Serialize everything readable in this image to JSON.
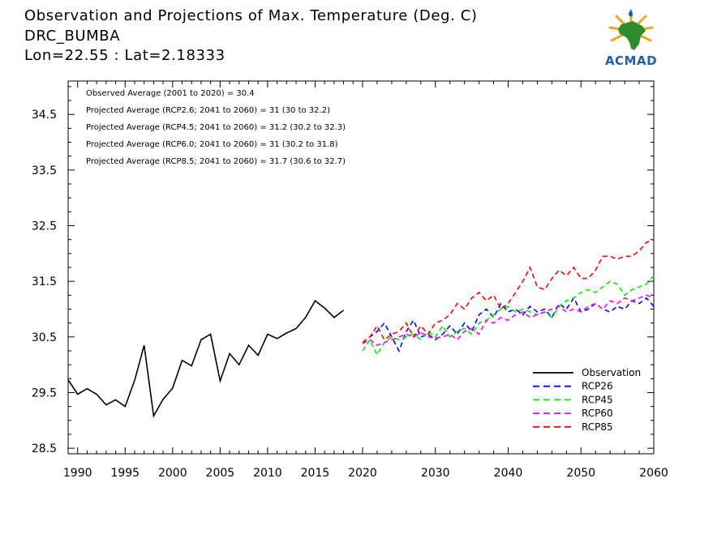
{
  "header": {
    "title": "Observation and Projections of Max. Temperature (Deg. C)",
    "station": "DRC_BUMBA",
    "coords": "Lon=22.55 : Lat=2.18333"
  },
  "logo": {
    "text": "ACMAD"
  },
  "annotations": [
    "Observed Average (2001 to 2020) = 30.4",
    "Projected Average (RCP2.6; 2041 to 2060) = 31 (30 to 32.2)",
    "Projected Average (RCP4.5; 2041 to 2060) = 31.2 (30.2 to 32.3)",
    "Projected Average (RCP6.0; 2041 to 2060) = 31 (30.2 to 31.8)",
    "Projected Average (RCP8.5; 2041 to 2060) = 31.7 (30.6 to 32.7)"
  ],
  "chart_data": {
    "type": "line",
    "xlim": [
      1989,
      2060
    ],
    "ylim": [
      28.4,
      35.1
    ],
    "yticks": [
      "28.5",
      "29.5",
      "30.5",
      "31.5",
      "32.5",
      "33.5",
      "34.5"
    ],
    "xticks_left": [
      "1990",
      "1995",
      "2000",
      "2005",
      "2010",
      "2015",
      "2020"
    ],
    "xticks_right": [
      "2030",
      "2040",
      "2050",
      "2060"
    ],
    "legend_position": "bottom-right",
    "colors": {
      "Observation": "#000000",
      "RCP26": "#0000ff",
      "RCP45": "#00ee00",
      "RCP60": "#ff00ff",
      "RCP85": "#ff0000"
    },
    "series": [
      {
        "name": "Observation",
        "style": "solid",
        "x": [
          1989,
          1990,
          1991,
          1992,
          1993,
          1994,
          1995,
          1996,
          1997,
          1998,
          1999,
          2000,
          2001,
          2002,
          2003,
          2004,
          2005,
          2006,
          2007,
          2008,
          2009,
          2010,
          2011,
          2012,
          2013,
          2014,
          2015,
          2016,
          2017,
          2018,
          2019
        ],
        "values": [
          29.73,
          29.47,
          29.57,
          29.47,
          29.28,
          29.37,
          29.25,
          29.72,
          30.35,
          29.08,
          29.38,
          29.58,
          30.08,
          29.98,
          30.45,
          30.55,
          29.71,
          30.2,
          30.0,
          30.35,
          30.17,
          30.55,
          30.47,
          30.57,
          30.65,
          30.85,
          31.15,
          31.02,
          30.85,
          30.98,
          null
        ]
      },
      {
        "name": "RCP26",
        "style": "dashed",
        "x": [
          2020,
          2021,
          2022,
          2023,
          2024,
          2025,
          2026,
          2027,
          2028,
          2029,
          2030,
          2031,
          2032,
          2033,
          2034,
          2035,
          2036,
          2037,
          2038,
          2039,
          2040,
          2041,
          2042,
          2043,
          2044,
          2045,
          2046,
          2047,
          2048,
          2049,
          2050,
          2051,
          2052,
          2053,
          2054,
          2055,
          2056,
          2057,
          2058,
          2059,
          2060
        ],
        "values": [
          30.4,
          30.5,
          30.6,
          30.75,
          30.5,
          30.25,
          30.6,
          30.8,
          30.5,
          30.55,
          30.45,
          30.55,
          30.7,
          30.55,
          30.75,
          30.6,
          30.9,
          31.0,
          30.85,
          31.1,
          30.95,
          31.0,
          30.9,
          31.05,
          30.95,
          31.0,
          30.85,
          31.1,
          31.0,
          31.2,
          30.95,
          31.0,
          31.1,
          31.0,
          30.95,
          31.05,
          31.0,
          31.15,
          31.1,
          31.2,
          31.05
        ]
      },
      {
        "name": "RCP45",
        "style": "dashed",
        "x": [
          2020,
          2021,
          2022,
          2023,
          2024,
          2025,
          2026,
          2027,
          2028,
          2029,
          2030,
          2031,
          2032,
          2033,
          2034,
          2035,
          2036,
          2037,
          2038,
          2039,
          2040,
          2041,
          2042,
          2043,
          2044,
          2045,
          2046,
          2047,
          2048,
          2049,
          2050,
          2051,
          2052,
          2053,
          2054,
          2055,
          2056,
          2057,
          2058,
          2059,
          2060
        ],
        "values": [
          30.25,
          30.45,
          30.18,
          30.4,
          30.5,
          30.45,
          30.5,
          30.55,
          30.45,
          30.6,
          30.5,
          30.7,
          30.5,
          30.6,
          30.65,
          30.55,
          30.75,
          30.8,
          30.9,
          31.0,
          31.05,
          30.95,
          31.0,
          30.95,
          30.9,
          30.95,
          30.85,
          31.05,
          31.15,
          31.2,
          31.3,
          31.35,
          31.3,
          31.4,
          31.5,
          31.45,
          31.25,
          31.35,
          31.4,
          31.45,
          31.6
        ]
      },
      {
        "name": "RCP60",
        "style": "dashed",
        "x": [
          2020,
          2021,
          2022,
          2023,
          2024,
          2025,
          2026,
          2027,
          2028,
          2029,
          2030,
          2031,
          2032,
          2033,
          2034,
          2035,
          2036,
          2037,
          2038,
          2039,
          2040,
          2041,
          2042,
          2043,
          2044,
          2045,
          2046,
          2047,
          2048,
          2049,
          2050,
          2051,
          2052,
          2053,
          2054,
          2055,
          2056,
          2057,
          2058,
          2059,
          2060
        ],
        "values": [
          30.38,
          30.45,
          30.35,
          30.4,
          30.45,
          30.5,
          30.55,
          30.5,
          30.58,
          30.5,
          30.48,
          30.5,
          30.55,
          30.45,
          30.6,
          30.65,
          30.55,
          30.8,
          30.75,
          30.85,
          30.8,
          30.9,
          30.95,
          30.85,
          30.9,
          30.95,
          31.0,
          31.05,
          30.95,
          31.0,
          30.95,
          31.05,
          31.1,
          31.0,
          31.15,
          31.1,
          31.2,
          31.15,
          31.2,
          31.25,
          31.2
        ]
      },
      {
        "name": "RCP85",
        "style": "dashed",
        "x": [
          2020,
          2021,
          2022,
          2023,
          2024,
          2025,
          2026,
          2027,
          2028,
          2029,
          2030,
          2031,
          2032,
          2033,
          2034,
          2035,
          2036,
          2037,
          2038,
          2039,
          2040,
          2041,
          2042,
          2043,
          2044,
          2045,
          2046,
          2047,
          2048,
          2049,
          2050,
          2051,
          2052,
          2053,
          2054,
          2055,
          2056,
          2057,
          2058,
          2059,
          2060
        ],
        "values": [
          30.4,
          30.5,
          30.7,
          30.45,
          30.55,
          30.6,
          30.75,
          30.5,
          30.7,
          30.55,
          30.75,
          30.8,
          30.9,
          31.1,
          31.0,
          31.2,
          31.3,
          31.15,
          31.25,
          31.0,
          31.1,
          31.3,
          31.5,
          31.75,
          31.4,
          31.35,
          31.55,
          31.7,
          31.6,
          31.75,
          31.55,
          31.55,
          31.7,
          31.95,
          31.95,
          31.9,
          31.95,
          31.95,
          32.05,
          32.2,
          32.25
        ]
      }
    ]
  }
}
